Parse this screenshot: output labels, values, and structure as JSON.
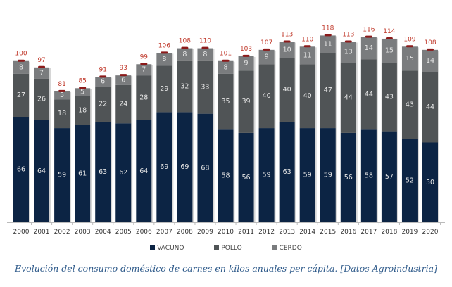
{
  "chart_data": {
    "type": "bar",
    "stacked": true,
    "title": "",
    "caption": "Evolución del consumo doméstico de carnes en kilos anuales per cápita. [Datos Agroindustria]",
    "xlabel": "",
    "ylabel": "",
    "ylim": [
      0,
      125
    ],
    "grid": false,
    "legend_position": "bottom",
    "categories": [
      "2000",
      "2001",
      "2002",
      "2003",
      "2004",
      "2005",
      "2006",
      "2007",
      "2008",
      "2009",
      "2010",
      "2011",
      "2012",
      "2013",
      "2014",
      "2015",
      "2016",
      "2017",
      "2018",
      "2019",
      "2020"
    ],
    "series": [
      {
        "name": "VACUNO",
        "color": "#0c2444",
        "values": [
          66,
          64,
          59,
          61,
          63,
          62,
          64,
          69,
          69,
          68,
          58,
          56,
          59,
          63,
          59,
          59,
          56,
          58,
          57,
          52,
          50
        ]
      },
      {
        "name": "POLLO",
        "color": "#505456",
        "values": [
          27,
          26,
          18,
          18,
          22,
          24,
          28,
          29,
          32,
          33,
          35,
          39,
          40,
          40,
          40,
          47,
          44,
          44,
          43,
          43,
          44
        ]
      },
      {
        "name": "CERDO",
        "color": "#7a7c7e",
        "values": [
          8,
          7,
          5,
          5,
          6,
          6,
          7,
          8,
          8,
          8,
          8,
          9,
          9,
          10,
          11,
          11,
          13,
          14,
          15,
          15,
          14
        ]
      }
    ],
    "totals": [
      100,
      97,
      81,
      85,
      91,
      93,
      99,
      106,
      108,
      110,
      101,
      103,
      107,
      113,
      110,
      118,
      113,
      116,
      114,
      109,
      108
    ],
    "total_label_color": "#c0392b"
  }
}
